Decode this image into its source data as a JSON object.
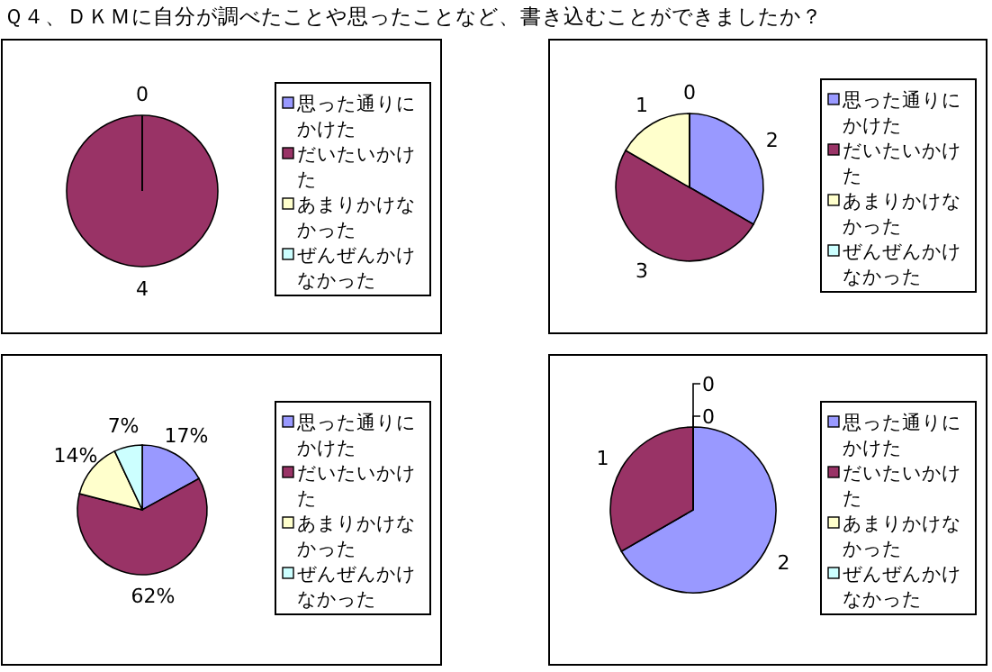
{
  "chart_data": [
    {
      "type": "pie",
      "title": "Ｑ４、ＤＫＭに自分が調べたことや思ったことなど、書き込むことができましたか？",
      "categories": [
        "思った通りにかけた",
        "だいたいかけた",
        "あまりかけなかった",
        "ぜんぜんかけなかった"
      ],
      "values": [
        0,
        4,
        0,
        0
      ],
      "colors": [
        "#9999ff",
        "#993366",
        "#ffffcc",
        "#ccffff"
      ],
      "value_labels": [
        "0",
        "4",
        null,
        null
      ],
      "legend": "right"
    },
    {
      "type": "pie",
      "categories": [
        "思った通りにかけた",
        "だいたいかけた",
        "あまりかけなかった",
        "ぜんぜんかけなかった"
      ],
      "values": [
        2,
        3,
        1,
        0
      ],
      "colors": [
        "#9999ff",
        "#993366",
        "#ffffcc",
        "#ccffff"
      ],
      "value_labels": [
        "2",
        "3",
        "1",
        "0"
      ],
      "legend": "right"
    },
    {
      "type": "pie",
      "categories": [
        "思った通りにかけた",
        "だいたいかけた",
        "あまりかけなかった",
        "ぜんぜんかけなかった"
      ],
      "values": [
        17,
        62,
        14,
        7
      ],
      "colors": [
        "#9999ff",
        "#993366",
        "#ffffcc",
        "#ccffff"
      ],
      "value_labels": [
        "17%",
        "62%",
        "14%",
        "7%"
      ],
      "legend": "right"
    },
    {
      "type": "pie",
      "categories": [
        "思った通りにかけた",
        "だいたいかけた",
        "あまりかけなかった",
        "ぜんぜんかけなかった"
      ],
      "values": [
        2,
        1,
        0,
        0
      ],
      "colors": [
        "#9999ff",
        "#993366",
        "#ffffcc",
        "#ccffff"
      ],
      "value_labels": [
        "2",
        "1",
        "0",
        "0"
      ],
      "legend": "right"
    }
  ]
}
